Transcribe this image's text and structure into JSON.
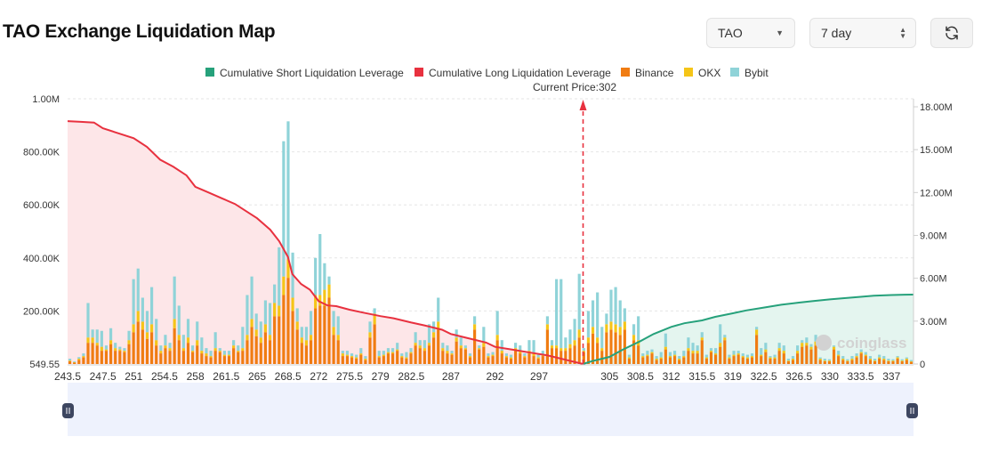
{
  "header": {
    "title": "TAO Exchange Liquidation Map",
    "coin_select": {
      "value": "TAO"
    },
    "range_select": {
      "value": "7 day"
    },
    "refresh_icon": "refresh-icon"
  },
  "watermark": "coinglass",
  "colors": {
    "short": "#26a17b",
    "long": "#e8313f",
    "binance": "#f07c12",
    "okx": "#f5c518",
    "bybit": "#8fd3d8",
    "short_area": "#e4f5ef",
    "long_area": "#fde6e8"
  },
  "chart_data": {
    "type": "bar",
    "legend": [
      "Cumulative Short Liquidation Leverage",
      "Cumulative Long Liquidation Leverage",
      "Binance",
      "OKX",
      "Bybit"
    ],
    "legend_position": "top-center",
    "current_price_label": "Current Price:302",
    "current_price": 302,
    "x_tick_labels": [
      "243.5",
      "247.5",
      "251",
      "254.5",
      "258",
      "261.5",
      "265",
      "268.5",
      "272",
      "275.5",
      "279",
      "282.5",
      "287",
      "292",
      "297",
      "305",
      "308.5",
      "312",
      "315.5",
      "319",
      "322.5",
      "326.5",
      "330",
      "333.5",
      "337"
    ],
    "y_left_ticks": [
      "549.55",
      "200.00K",
      "400.00K",
      "600.00K",
      "800.00K",
      "1.00M"
    ],
    "y_left_range": [
      0,
      1000000
    ],
    "y_right_ticks": [
      "0",
      "3.00M",
      "6.00M",
      "9.00M",
      "12.00M",
      "15.00M",
      "18.00M"
    ],
    "y_right_range": [
      0,
      18000000
    ],
    "grid": "horizontal-dashed",
    "bar_stack_order": [
      "Binance",
      "OKX",
      "Bybit"
    ],
    "bars": [
      [
        10000,
        3000,
        7000
      ],
      [
        5000,
        2000,
        3000
      ],
      [
        15000,
        5000,
        6000
      ],
      [
        25000,
        5000,
        10000
      ],
      [
        80000,
        20000,
        130000
      ],
      [
        80000,
        20000,
        30000
      ],
      [
        70000,
        10000,
        50000
      ],
      [
        50000,
        15000,
        60000
      ],
      [
        50000,
        5000,
        15000
      ],
      [
        75000,
        15000,
        45000
      ],
      [
        50000,
        10000,
        20000
      ],
      [
        50000,
        5000,
        10000
      ],
      [
        45000,
        5000,
        10000
      ],
      [
        75000,
        15000,
        35000
      ],
      [
        120000,
        30000,
        170000
      ],
      [
        160000,
        40000,
        160000
      ],
      [
        130000,
        30000,
        90000
      ],
      [
        95000,
        25000,
        80000
      ],
      [
        120000,
        30000,
        140000
      ],
      [
        70000,
        20000,
        80000
      ],
      [
        40000,
        10000,
        20000
      ],
      [
        60000,
        10000,
        40000
      ],
      [
        50000,
        10000,
        20000
      ],
      [
        135000,
        35000,
        160000
      ],
      [
        90000,
        20000,
        110000
      ],
      [
        50000,
        10000,
        50000
      ],
      [
        80000,
        20000,
        70000
      ],
      [
        45000,
        5000,
        20000
      ],
      [
        70000,
        20000,
        70000
      ],
      [
        40000,
        10000,
        50000
      ],
      [
        30000,
        10000,
        20000
      ],
      [
        25000,
        5000,
        20000
      ],
      [
        50000,
        10000,
        60000
      ],
      [
        45000,
        5000,
        10000
      ],
      [
        30000,
        5000,
        15000
      ],
      [
        30000,
        5000,
        15000
      ],
      [
        60000,
        10000,
        20000
      ],
      [
        45000,
        5000,
        20000
      ],
      [
        50000,
        10000,
        80000
      ],
      [
        90000,
        20000,
        150000
      ],
      [
        140000,
        30000,
        160000
      ],
      [
        105000,
        25000,
        60000
      ],
      [
        80000,
        20000,
        60000
      ],
      [
        120000,
        30000,
        90000
      ],
      [
        90000,
        20000,
        120000
      ],
      [
        180000,
        50000,
        70000
      ],
      [
        180000,
        40000,
        220000
      ],
      [
        260000,
        70000,
        510000
      ],
      [
        325000,
        70000,
        520000
      ],
      [
        200000,
        50000,
        170000
      ],
      [
        130000,
        30000,
        50000
      ],
      [
        80000,
        20000,
        40000
      ],
      [
        70000,
        20000,
        50000
      ],
      [
        90000,
        20000,
        90000
      ],
      [
        210000,
        50000,
        140000
      ],
      [
        220000,
        40000,
        230000
      ],
      [
        220000,
        60000,
        100000
      ],
      [
        250000,
        50000,
        30000
      ],
      [
        110000,
        30000,
        60000
      ],
      [
        90000,
        20000,
        70000
      ],
      [
        30000,
        10000,
        10000
      ],
      [
        30000,
        5000,
        15000
      ],
      [
        25000,
        5000,
        10000
      ],
      [
        20000,
        5000,
        10000
      ],
      [
        35000,
        5000,
        20000
      ],
      [
        15000,
        5000,
        10000
      ],
      [
        100000,
        20000,
        40000
      ],
      [
        150000,
        40000,
        20000
      ],
      [
        25000,
        5000,
        20000
      ],
      [
        30000,
        5000,
        15000
      ],
      [
        40000,
        5000,
        15000
      ],
      [
        40000,
        5000,
        15000
      ],
      [
        50000,
        5000,
        25000
      ],
      [
        25000,
        5000,
        10000
      ],
      [
        20000,
        5000,
        20000
      ],
      [
        40000,
        5000,
        15000
      ],
      [
        70000,
        10000,
        40000
      ],
      [
        60000,
        10000,
        20000
      ],
      [
        50000,
        10000,
        30000
      ],
      [
        70000,
        10000,
        70000
      ],
      [
        100000,
        20000,
        40000
      ],
      [
        130000,
        30000,
        90000
      ],
      [
        50000,
        10000,
        20000
      ],
      [
        40000,
        10000,
        20000
      ],
      [
        35000,
        5000,
        10000
      ],
      [
        85000,
        15000,
        30000
      ],
      [
        60000,
        10000,
        30000
      ],
      [
        55000,
        5000,
        10000
      ],
      [
        25000,
        5000,
        10000
      ],
      [
        130000,
        20000,
        30000
      ],
      [
        55000,
        5000,
        10000
      ],
      [
        65000,
        15000,
        60000
      ],
      [
        25000,
        5000,
        10000
      ],
      [
        30000,
        5000,
        10000
      ],
      [
        90000,
        20000,
        90000
      ],
      [
        40000,
        10000,
        40000
      ],
      [
        25000,
        5000,
        10000
      ],
      [
        20000,
        5000,
        10000
      ],
      [
        50000,
        10000,
        20000
      ],
      [
        40000,
        10000,
        20000
      ],
      [
        25000,
        5000,
        10000
      ],
      [
        40000,
        10000,
        40000
      ],
      [
        30000,
        10000,
        50000
      ],
      [
        20000,
        5000,
        10000
      ],
      [
        30000,
        5000,
        15000
      ],
      [
        130000,
        20000,
        30000
      ],
      [
        60000,
        10000,
        20000
      ],
      [
        60000,
        10000,
        250000
      ],
      [
        50000,
        10000,
        260000
      ],
      [
        50000,
        10000,
        40000
      ],
      [
        60000,
        15000,
        55000
      ],
      [
        70000,
        20000,
        80000
      ],
      [
        100000,
        30000,
        210000
      ],
      [
        45000,
        5000,
        10000
      ],
      [
        80000,
        20000,
        100000
      ],
      [
        115000,
        25000,
        100000
      ],
      [
        80000,
        20000,
        170000
      ],
      [
        50000,
        10000,
        80000
      ],
      [
        120000,
        30000,
        40000
      ],
      [
        130000,
        30000,
        120000
      ],
      [
        120000,
        30000,
        140000
      ],
      [
        110000,
        30000,
        100000
      ],
      [
        130000,
        30000,
        50000
      ],
      [
        20000,
        5000,
        10000
      ],
      [
        90000,
        20000,
        40000
      ],
      [
        70000,
        20000,
        90000
      ],
      [
        25000,
        5000,
        10000
      ],
      [
        30000,
        5000,
        15000
      ],
      [
        40000,
        5000,
        10000
      ],
      [
        15000,
        5000,
        10000
      ],
      [
        20000,
        5000,
        20000
      ],
      [
        55000,
        10000,
        50000
      ],
      [
        25000,
        5000,
        15000
      ],
      [
        30000,
        5000,
        15000
      ],
      [
        15000,
        5000,
        10000
      ],
      [
        25000,
        5000,
        20000
      ],
      [
        50000,
        10000,
        40000
      ],
      [
        40000,
        10000,
        30000
      ],
      [
        40000,
        10000,
        20000
      ],
      [
        90000,
        10000,
        20000
      ],
      [
        20000,
        5000,
        10000
      ],
      [
        45000,
        5000,
        10000
      ],
      [
        35000,
        5000,
        20000
      ],
      [
        65000,
        15000,
        70000
      ],
      [
        90000,
        10000,
        10000
      ],
      [
        20000,
        5000,
        10000
      ],
      [
        30000,
        5000,
        15000
      ],
      [
        35000,
        5000,
        10000
      ],
      [
        25000,
        5000,
        10000
      ],
      [
        20000,
        5000,
        10000
      ],
      [
        25000,
        5000,
        10000
      ],
      [
        110000,
        20000,
        10000
      ],
      [
        30000,
        5000,
        25000
      ],
      [
        45000,
        10000,
        25000
      ],
      [
        20000,
        5000,
        5000
      ],
      [
        20000,
        5000,
        10000
      ],
      [
        50000,
        10000,
        20000
      ],
      [
        40000,
        10000,
        20000
      ],
      [
        10000,
        3000,
        7000
      ],
      [
        15000,
        5000,
        10000
      ],
      [
        40000,
        10000,
        20000
      ],
      [
        65000,
        15000,
        10000
      ],
      [
        70000,
        10000,
        20000
      ],
      [
        55000,
        10000,
        10000
      ],
      [
        70000,
        15000,
        25000
      ],
      [
        15000,
        5000,
        5000
      ],
      [
        10000,
        3000,
        7000
      ],
      [
        10000,
        3000,
        5000
      ],
      [
        55000,
        10000,
        5000
      ],
      [
        30000,
        5000,
        15000
      ],
      [
        15000,
        5000,
        10000
      ],
      [
        10000,
        3000,
        5000
      ],
      [
        15000,
        5000,
        10000
      ],
      [
        25000,
        5000,
        10000
      ],
      [
        40000,
        5000,
        10000
      ],
      [
        30000,
        5000,
        10000
      ],
      [
        15000,
        5000,
        10000
      ],
      [
        10000,
        3000,
        7000
      ],
      [
        20000,
        5000,
        10000
      ],
      [
        15000,
        5000,
        10000
      ],
      [
        10000,
        3000,
        7000
      ],
      [
        10000,
        3000,
        5000
      ],
      [
        20000,
        5000,
        5000
      ],
      [
        10000,
        3000,
        5000
      ],
      [
        15000,
        5000,
        5000
      ],
      [
        8000,
        2000,
        5000
      ]
    ],
    "long_cumulative": {
      "x": [
        243.5,
        245,
        246.5,
        247.5,
        249,
        251,
        252.5,
        254,
        255.5,
        257,
        258,
        259.5,
        261,
        262.5,
        264,
        265,
        266.5,
        267.5,
        268.5,
        269,
        270,
        271,
        272,
        273,
        274,
        275.5,
        277,
        279,
        280.5,
        282.5,
        284,
        286,
        287,
        289,
        291,
        292,
        294,
        296,
        298,
        300,
        302
      ],
      "y": [
        17000000,
        16950000,
        16900000,
        16500000,
        16200000,
        15800000,
        15200000,
        14300000,
        13800000,
        13200000,
        12400000,
        12000000,
        11600000,
        11200000,
        10600000,
        10200000,
        9400000,
        8600000,
        7500000,
        6300000,
        5600000,
        5200000,
        4400000,
        4100000,
        4050000,
        3800000,
        3600000,
        3350000,
        3200000,
        2900000,
        2700000,
        2400000,
        2100000,
        1800000,
        1500000,
        1200000,
        1000000,
        800000,
        600000,
        300000,
        0
      ]
    },
    "short_cumulative": {
      "x": [
        302,
        303,
        305,
        306.5,
        308.5,
        310,
        312,
        313.5,
        315.5,
        317,
        319,
        320.5,
        322.5,
        324.5,
        326.5,
        328,
        330,
        331.5,
        333.5,
        335,
        337,
        338.5,
        339.5
      ],
      "y": [
        0,
        200000,
        500000,
        1000000,
        1600000,
        2100000,
        2600000,
        2850000,
        3050000,
        3300000,
        3550000,
        3750000,
        3950000,
        4150000,
        4300000,
        4400000,
        4520000,
        4600000,
        4700000,
        4780000,
        4830000,
        4850000,
        4860000
      ]
    },
    "x_range": [
      243.5,
      339.5
    ]
  }
}
